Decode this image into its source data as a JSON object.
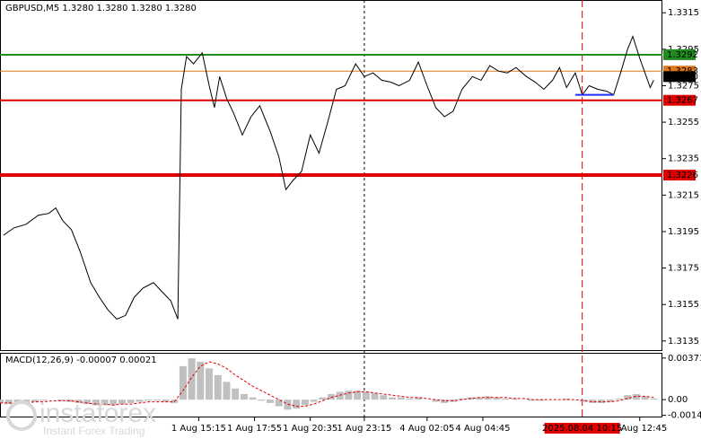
{
  "chart_data": [
    {
      "type": "line",
      "title": "GBPUSD,M5  1.3280 1.3280 1.3280 1.3280",
      "color": "#000000",
      "x": [
        2,
        8,
        15,
        22,
        28,
        32,
        36,
        41,
        46,
        52,
        57,
        62,
        67,
        72,
        77,
        82,
        88,
        93,
        98,
        102,
        104,
        107,
        111,
        116,
        120,
        123,
        126,
        130,
        134,
        139,
        144,
        149,
        155,
        160,
        164,
        168,
        173,
        178,
        183,
        188,
        193,
        198,
        204,
        209,
        214,
        219,
        224,
        229,
        235,
        240,
        245,
        250,
        255,
        260,
        265,
        271,
        276,
        281,
        286,
        291,
        296,
        302,
        307,
        312,
        317,
        321,
        325,
        330,
        334,
        338,
        343,
        348,
        352,
        356,
        360,
        363,
        367,
        370,
        373,
        375
      ],
      "values": [
        1.3193,
        1.3197,
        1.3199,
        1.3204,
        1.3205,
        1.3208,
        1.3201,
        1.3196,
        1.3184,
        1.3167,
        1.3159,
        1.3152,
        1.3147,
        1.3149,
        1.3159,
        1.3164,
        1.3167,
        1.3162,
        1.3157,
        1.3147,
        1.3273,
        1.3291,
        1.3287,
        1.3293,
        1.3275,
        1.3263,
        1.328,
        1.3268,
        1.326,
        1.3248,
        1.3258,
        1.3264,
        1.325,
        1.3236,
        1.3218,
        1.3223,
        1.3228,
        1.3248,
        1.3238,
        1.3255,
        1.3273,
        1.3275,
        1.3287,
        1.328,
        1.3282,
        1.3278,
        1.3277,
        1.3275,
        1.3278,
        1.3288,
        1.3275,
        1.3263,
        1.3258,
        1.3261,
        1.3273,
        1.328,
        1.3278,
        1.3286,
        1.3283,
        1.3282,
        1.3285,
        1.328,
        1.3277,
        1.3273,
        1.3278,
        1.3285,
        1.3274,
        1.3282,
        1.327,
        1.3275,
        1.3273,
        1.3272,
        1.327,
        1.3282,
        1.3295,
        1.3302,
        1.329,
        1.3282,
        1.3274,
        1.3278
      ],
      "xlim": [
        0,
        380
      ],
      "xticks": [
        {
          "value": 114,
          "label": "1 Aug 15:15"
        },
        {
          "value": 146,
          "label": "1 Aug 17:55"
        },
        {
          "value": 178,
          "label": "1 Aug 20:35"
        },
        {
          "value": 209,
          "label": "1 Aug 23:15"
        },
        {
          "value": 245,
          "label": "4 Aug 02:05"
        },
        {
          "value": 277,
          "label": "4 Aug 04:45"
        },
        {
          "value": 367,
          "label": "4 Aug 12:45"
        }
      ],
      "ylim": [
        1.313,
        1.3322
      ],
      "yticks": [
        1.3315,
        1.3295,
        1.3275,
        1.3255,
        1.3235,
        1.3215,
        1.3195,
        1.3175,
        1.3155,
        1.3135
      ],
      "levels": [
        {
          "value": 1.3292,
          "label": "1.3292",
          "color": "#1e8c1e"
        },
        {
          "value": 1.3283,
          "label": "1.3283",
          "color": "#e07a1a"
        },
        {
          "value": 1.328,
          "label": "1.3280",
          "color": "#000000"
        },
        {
          "value": 1.3267,
          "label": "1.3267",
          "color": "#e00000"
        },
        {
          "value": 1.3226,
          "label": "1.3226",
          "color": "#e00000"
        }
      ],
      "marker_line": {
        "x": [
          330,
          352
        ],
        "y": 1.327,
        "color": "#2030ff"
      },
      "separator_x": 209,
      "crosshair": {
        "x": 334,
        "label": "2025.08.04 10:15",
        "color": "#e00000"
      }
    },
    {
      "type": "macd",
      "title": "MACD(12,26,9) -0.00007 0.00021",
      "x": [
        0,
        5,
        10,
        15,
        20,
        25,
        30,
        35,
        40,
        45,
        50,
        55,
        60,
        65,
        70,
        75,
        80,
        85,
        90,
        95,
        100,
        105,
        110,
        115,
        120,
        125,
        130,
        135,
        140,
        145,
        150,
        155,
        160,
        165,
        170,
        175,
        180,
        185,
        190,
        195,
        200,
        205,
        210,
        215,
        220,
        225,
        230,
        235,
        240,
        245,
        250,
        255,
        260,
        265,
        270,
        275,
        280,
        285,
        290,
        295,
        300,
        305,
        310,
        315,
        320,
        325,
        330,
        335,
        340,
        345,
        350,
        355,
        360,
        365,
        370,
        375
      ],
      "histogram": {
        "color": "#c0c0c0",
        "values": [
          -0.0003,
          -0.0004,
          -0.0003,
          -0.0002,
          -0.0002,
          -0.0001,
          0,
          -0.0001,
          -0.0002,
          -0.0003,
          -0.0004,
          -0.0005,
          -0.0005,
          -0.0005,
          -0.0004,
          -0.0003,
          -0.0002,
          -0.0001,
          -0.0001,
          -0.0002,
          -0.0003,
          0.003,
          0.0037,
          0.0034,
          0.0028,
          0.0022,
          0.0016,
          0.001,
          0.0005,
          0.0002,
          -0.0001,
          -0.0003,
          -0.0006,
          -0.0009,
          -0.0008,
          -0.0005,
          -0.0002,
          0.0002,
          0.0005,
          0.0007,
          0.0008,
          0.0008,
          0.0007,
          0.0006,
          0.0004,
          0.0002,
          0.0002,
          0.0001,
          0.0002,
          0,
          -0.0002,
          -0.0003,
          -0.0002,
          0.0001,
          0.0002,
          0.0002,
          0.0003,
          0.0002,
          0.0001,
          0.0001,
          0,
          -0.0001,
          -0.0001,
          0,
          0,
          0.0001,
          0,
          -0.0002,
          -0.0003,
          -0.0003,
          -0.0002,
          0.0001,
          0.0004,
          0.0005,
          0.0003,
          0.0001
        ]
      },
      "signal": {
        "color": "#e00000",
        "values": [
          -0.0003,
          -0.0003,
          -0.0003,
          -0.0003,
          -0.0002,
          -0.0002,
          -0.0001,
          -0.0001,
          -0.0001,
          -0.0002,
          -0.0003,
          -0.0004,
          -0.0004,
          -0.0005,
          -0.0004,
          -0.0004,
          -0.0003,
          -0.0002,
          -0.0002,
          -0.0002,
          -0.0002,
          0.0008,
          0.002,
          0.003,
          0.0034,
          0.0032,
          0.0028,
          0.0022,
          0.0017,
          0.0012,
          0.0008,
          0.0004,
          0,
          -0.0004,
          -0.0006,
          -0.0006,
          -0.0004,
          -0.0001,
          0.0002,
          0.0004,
          0.0006,
          0.0007,
          0.0007,
          0.0006,
          0.0005,
          0.0004,
          0.0003,
          0.0002,
          0.0002,
          0.0001,
          0,
          -0.0001,
          -0.0001,
          0,
          0.0001,
          0.0002,
          0.0002,
          0.0002,
          0.0002,
          0.0001,
          0.0001,
          0,
          0,
          0,
          0,
          0,
          0,
          -0.0001,
          -0.0002,
          -0.0002,
          -0.0002,
          -0.0001,
          0.0001,
          0.0003,
          0.0003,
          0.0002
        ]
      },
      "xlim": [
        0,
        380
      ],
      "ylim": [
        -0.0016,
        0.0042
      ],
      "yticks": [
        0.00373,
        {
          "value": 0,
          "label": "0.00"
        },
        -0.00141
      ]
    }
  ],
  "watermark": {
    "brand": "instaforex",
    "tagline": "Instant Forex Trading"
  }
}
